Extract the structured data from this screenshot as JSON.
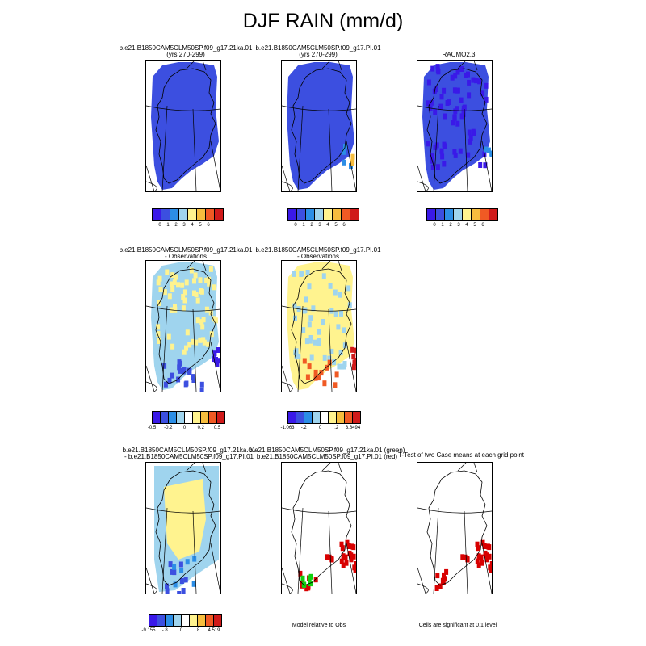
{
  "figure": {
    "title": "DJF RAIN (mm/d)",
    "notes": {
      "model_relative": "Model relative to Obs",
      "significance": "Cells are significant at 0.1 level"
    }
  },
  "colors": {
    "c1": "#3a19e8",
    "c2": "#3c4fe0",
    "c3": "#2c8ee6",
    "c4": "#9fd4ee",
    "c5": "#fff38f",
    "c6": "#f6bd3e",
    "c7": "#f05a24",
    "c8": "#d01a1a",
    "green": "#10d010",
    "red": "#d80000"
  },
  "panels": [
    {
      "id": "p1",
      "title": [
        "b.e21.B1850CAM5CLM50SP.f09_g17.21ka.01",
        "(yrs 270-299)"
      ],
      "style": "model_low"
    },
    {
      "id": "p2",
      "title": [
        "b.e21.B1850CAM5CLM50SP.f09_g17.PI.01",
        "(yrs 270-299)"
      ],
      "style": "model_pi"
    },
    {
      "id": "p3",
      "title": [
        "RACMO2.3"
      ],
      "style": "obs"
    },
    {
      "id": "p4",
      "title": [
        "b.e21.B1850CAM5CLM50SP.f09_g17.21ka.01",
        "- Observations"
      ],
      "style": "diff_low"
    },
    {
      "id": "p5",
      "title": [
        "b.e21.B1850CAM5CLM50SP.f09_g17.PI.01",
        "- Observations"
      ],
      "style": "diff_pi"
    },
    {
      "id": "p6",
      "title": [
        "b.e21.B1850CAM5CLM50SP.f09_g17.21ka.01",
        "- b.e21.B1850CAM5CLM50SP.f09_g17.PI.01"
      ],
      "style": "diff_models"
    },
    {
      "id": "p7",
      "title": [
        "b.e21.B1850CAM5CLM50SP.f09_g17.21ka.01 (green)",
        "b.e21.B1850CAM5CLM50SP.f09_g17.PI.01 (red)"
      ],
      "style": "relative"
    },
    {
      "id": "p8",
      "title": [
        "T-Test of two Case means at each grid point"
      ],
      "style": "ttest"
    }
  ],
  "colorbars": [
    {
      "id": "cb1",
      "labels": [
        "0",
        "1",
        "2",
        "3",
        "4",
        "5",
        "6"
      ]
    },
    {
      "id": "cb2",
      "labels": [
        "0",
        "1",
        "2",
        "3",
        "4",
        "5",
        "6"
      ]
    },
    {
      "id": "cb3",
      "labels": [
        "0",
        "1",
        "2",
        "3",
        "4",
        "5",
        "6"
      ]
    },
    {
      "id": "cb4",
      "labels": [
        "-0.5",
        "-0.2",
        "0",
        "0.2",
        "0.5"
      ]
    },
    {
      "id": "cb5",
      "labels": [
        "-1.063",
        "-.2",
        "0",
        ".2",
        "3.8494"
      ]
    },
    {
      "id": "cb6",
      "labels": [
        "-9.155",
        "-.8",
        "0",
        ".8",
        "4.519"
      ]
    }
  ]
}
